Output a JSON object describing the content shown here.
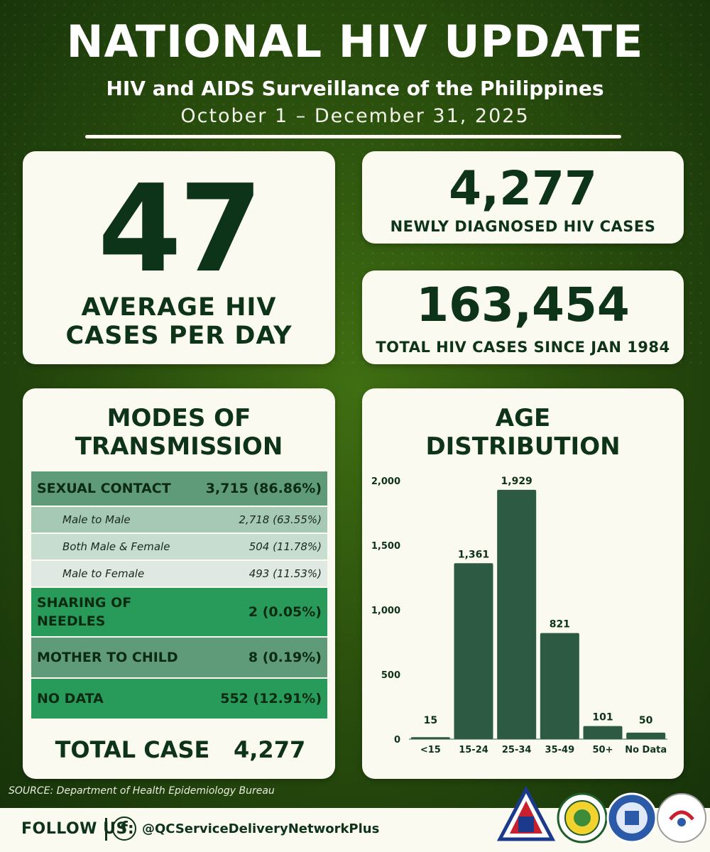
{
  "header": {
    "title": "NATIONAL HIV UPDATE",
    "subtitle": "HIV and AIDS Surveillance of the Philippines",
    "date_range": "October 1 – December 31, 2025"
  },
  "stats": {
    "average_per_day": {
      "value": "47",
      "label_line1": "AVERAGE HIV",
      "label_line2": "CASES PER DAY"
    },
    "newly_diagnosed": {
      "value": "4,277",
      "label": "NEWLY DIAGNOSED HIV CASES"
    },
    "total_since": {
      "value": "163,454",
      "label": "TOTAL HIV CASES SINCE JAN 1984"
    }
  },
  "modes": {
    "title_line1": "MODES OF",
    "title_line2": "TRANSMISSION",
    "rows": [
      {
        "label": "SEXUAL CONTACT",
        "value": "3,715 (86.86%)",
        "kind": "main",
        "color": "#5f9b79"
      },
      {
        "label": "Male to Male",
        "value": "2,718 (63.55%)",
        "kind": "sub",
        "color": "#a6c9b5"
      },
      {
        "label": "Both Male & Female",
        "value": "504 (11.78%)",
        "kind": "sub",
        "color": "#c6ddcf"
      },
      {
        "label": "Male to Female",
        "value": "493 (11.53%)",
        "kind": "sub",
        "color": "#dfe8e2"
      },
      {
        "label": "SHARING OF NEEDLES",
        "value": "2 (0.05%)",
        "kind": "main",
        "color": "#289b5b"
      },
      {
        "label": "MOTHER TO CHILD",
        "value": "8 (0.19%)",
        "kind": "main",
        "color": "#5f9b79"
      },
      {
        "label": "NO DATA",
        "value": "552 (12.91%)",
        "kind": "main",
        "color": "#289b5b"
      }
    ],
    "total_label": "TOTAL CASE",
    "total_value": "4,277"
  },
  "age": {
    "title_line1": "AGE",
    "title_line2": "DISTRIBUTION"
  },
  "chart_data": {
    "type": "bar",
    "title": "AGE DISTRIBUTION",
    "categories": [
      "<15",
      "15-24",
      "25-34",
      "35-49",
      "50+",
      "No Data"
    ],
    "values": [
      15,
      1361,
      1929,
      821,
      101,
      50
    ],
    "data_labels": [
      "15",
      "1,361",
      "1,929",
      "821",
      "101",
      "50"
    ],
    "y_ticks": [
      0,
      500,
      1000,
      1500,
      2000
    ],
    "y_tick_labels": [
      "0",
      "500",
      "1,000",
      "1,500",
      "2,000"
    ],
    "ylim": [
      0,
      2000
    ],
    "grid": false,
    "bar_color": "#2d5a42"
  },
  "footer": {
    "source": "SOURCE: Department of Health Epidemiology Bureau",
    "follow_label": "FOLLOW US:",
    "facebook_glyph": "f",
    "handle": "@QCServiceDeliveryNetworkPlus",
    "logos": [
      "lungsod-quezon-seal",
      "quezon-city-health-department-logo",
      "epidemiology-surveillance-division-logo",
      "service-delivery-network-logo"
    ]
  }
}
